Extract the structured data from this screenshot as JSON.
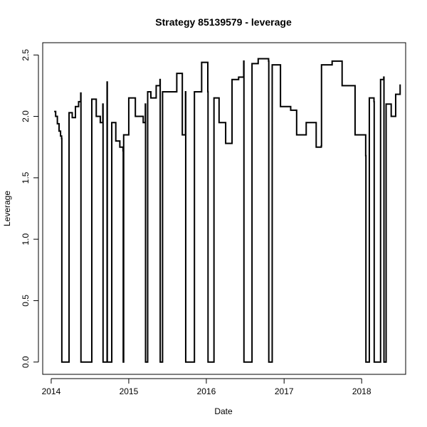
{
  "chart_data": {
    "type": "line",
    "title": "Strategy 85139579 - leverage",
    "xlabel": "Date",
    "ylabel": "Leverage",
    "xlim": [
      "2013-11-22",
      "2018-07-27"
    ],
    "ylim": [
      -0.1,
      2.6
    ],
    "x_ticks": [
      {
        "date": "2014-01-01",
        "label": "2014"
      },
      {
        "date": "2015-01-01",
        "label": "2015"
      },
      {
        "date": "2016-01-01",
        "label": "2016"
      },
      {
        "date": "2017-01-01",
        "label": "2017"
      },
      {
        "date": "2018-01-01",
        "label": "2018"
      }
    ],
    "y_ticks": [
      {
        "value": 0.0,
        "label": "0.0"
      },
      {
        "value": 0.5,
        "label": "0.5"
      },
      {
        "value": 1.0,
        "label": "1.0"
      },
      {
        "value": 1.5,
        "label": "1.5"
      },
      {
        "value": 2.0,
        "label": "2.0"
      },
      {
        "value": 2.5,
        "label": "2.5"
      }
    ],
    "grid": false,
    "series": [
      {
        "color": "#000000",
        "points": [
          [
            "2014-01-15",
            2.04
          ],
          [
            "2014-01-22",
            2.0
          ],
          [
            "2014-01-30",
            1.94
          ],
          [
            "2014-02-07",
            1.88
          ],
          [
            "2014-02-14",
            1.84
          ],
          [
            "2014-02-19",
            1.82
          ],
          [
            "2014-02-20",
            0.0
          ],
          [
            "2014-03-25",
            0.0
          ],
          [
            "2014-03-26",
            2.03
          ],
          [
            "2014-04-10",
            1.99
          ],
          [
            "2014-04-25",
            2.08
          ],
          [
            "2014-05-10",
            2.12
          ],
          [
            "2014-05-20",
            2.19
          ],
          [
            "2014-05-21",
            0.0
          ],
          [
            "2014-07-10",
            0.0
          ],
          [
            "2014-07-11",
            2.14
          ],
          [
            "2014-08-01",
            2.0
          ],
          [
            "2014-08-20",
            1.95
          ],
          [
            "2014-09-01",
            2.1
          ],
          [
            "2014-09-02",
            0.0
          ],
          [
            "2014-09-20",
            0.0
          ],
          [
            "2014-09-21",
            2.28
          ],
          [
            "2014-09-22",
            0.0
          ],
          [
            "2014-10-12",
            0.0
          ],
          [
            "2014-10-13",
            1.95
          ],
          [
            "2014-11-01",
            1.8
          ],
          [
            "2014-11-20",
            1.75
          ],
          [
            "2014-12-05",
            1.72
          ],
          [
            "2014-12-06",
            0.0
          ],
          [
            "2014-12-07",
            0.0
          ],
          [
            "2014-12-08",
            1.85
          ],
          [
            "2015-01-01",
            2.15
          ],
          [
            "2015-02-01",
            2.0
          ],
          [
            "2015-03-10",
            1.95
          ],
          [
            "2015-03-20",
            2.1
          ],
          [
            "2015-03-21",
            0.0
          ],
          [
            "2015-03-30",
            0.0
          ],
          [
            "2015-03-31",
            2.2
          ],
          [
            "2015-04-15",
            2.15
          ],
          [
            "2015-05-10",
            2.25
          ],
          [
            "2015-05-28",
            2.3
          ],
          [
            "2015-05-29",
            0.0
          ],
          [
            "2015-06-08",
            0.0
          ],
          [
            "2015-06-09",
            2.2
          ],
          [
            "2015-07-15",
            2.2
          ],
          [
            "2015-08-15",
            2.35
          ],
          [
            "2015-09-10",
            1.85
          ],
          [
            "2015-09-25",
            2.2
          ],
          [
            "2015-09-26",
            0.0
          ],
          [
            "2015-11-05",
            0.0
          ],
          [
            "2015-11-06",
            2.2
          ],
          [
            "2015-12-10",
            2.44
          ],
          [
            "2016-01-08",
            2.2
          ],
          [
            "2016-01-09",
            0.0
          ],
          [
            "2016-02-05",
            0.0
          ],
          [
            "2016-02-06",
            2.15
          ],
          [
            "2016-03-01",
            1.95
          ],
          [
            "2016-04-01",
            1.78
          ],
          [
            "2016-05-01",
            2.3
          ],
          [
            "2016-06-01",
            2.32
          ],
          [
            "2016-06-25",
            2.45
          ],
          [
            "2016-06-26",
            0.0
          ],
          [
            "2016-08-02",
            0.0
          ],
          [
            "2016-08-03",
            2.43
          ],
          [
            "2016-09-01",
            2.47
          ],
          [
            "2016-10-20",
            2.45
          ],
          [
            "2016-10-21",
            0.0
          ],
          [
            "2016-11-05",
            0.0
          ],
          [
            "2016-11-06",
            2.42
          ],
          [
            "2016-12-15",
            2.08
          ],
          [
            "2017-02-01",
            2.05
          ],
          [
            "2017-03-01",
            1.85
          ],
          [
            "2017-04-15",
            1.95
          ],
          [
            "2017-06-01",
            1.75
          ],
          [
            "2017-06-25",
            1.76
          ],
          [
            "2017-06-26",
            2.42
          ],
          [
            "2017-08-15",
            2.45
          ],
          [
            "2017-10-01",
            2.25
          ],
          [
            "2017-12-01",
            1.85
          ],
          [
            "2018-01-20",
            1.68
          ],
          [
            "2018-01-21",
            0.0
          ],
          [
            "2018-02-05",
            0.0
          ],
          [
            "2018-02-06",
            2.15
          ],
          [
            "2018-02-28",
            2.12
          ],
          [
            "2018-03-01",
            0.0
          ],
          [
            "2018-03-30",
            0.0
          ],
          [
            "2018-03-31",
            2.3
          ],
          [
            "2018-04-15",
            2.32
          ],
          [
            "2018-04-16",
            0.0
          ],
          [
            "2018-04-25",
            0.0
          ],
          [
            "2018-04-26",
            2.1
          ],
          [
            "2018-05-20",
            2.0
          ],
          [
            "2018-06-10",
            2.18
          ],
          [
            "2018-07-01",
            2.26
          ]
        ]
      }
    ]
  }
}
